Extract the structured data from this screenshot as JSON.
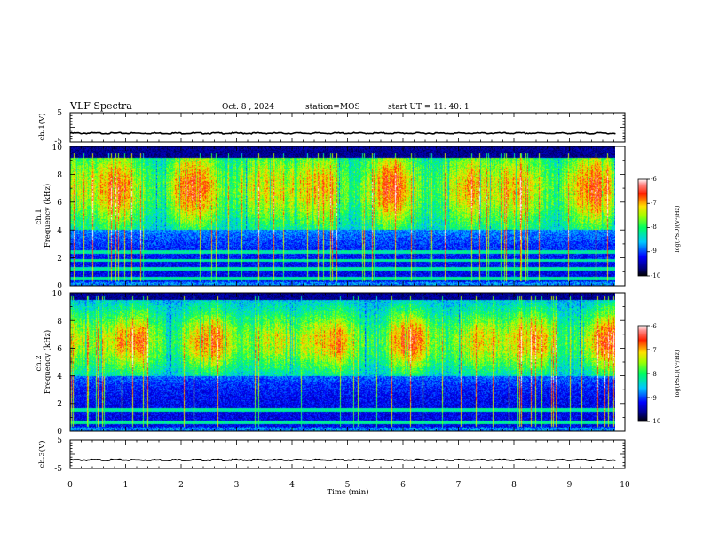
{
  "header": {
    "title": "VLF Spectra",
    "date": "Oct. 8 , 2024",
    "station": "station=MOS",
    "start": "start UT = 11: 40: 1"
  },
  "chart_data": [
    {
      "type": "line",
      "name": "ch1-voltage",
      "ylabel": "ch.1(V)",
      "ylim": [
        -5,
        5
      ],
      "yticks": [
        "5",
        "-5"
      ],
      "level": -2,
      "xlim": [
        0,
        10
      ]
    },
    {
      "type": "heatmap",
      "name": "ch1-spectrogram",
      "ylabel": "ch.1\nFrequency (kHz)",
      "ylim": [
        0,
        10
      ],
      "yticks": [
        "0",
        "2",
        "4",
        "6",
        "8",
        "10"
      ],
      "xlim": [
        0,
        9.83
      ],
      "colorbar": {
        "label": "log(PSD)(V²/Hz)",
        "range": [
          -10,
          -6
        ],
        "ticks": [
          "-6",
          "-7",
          "-8",
          "-9",
          "-10"
        ]
      },
      "features": {
        "intense_band_khz": [
          5,
          9
        ],
        "cutoff_khz": 9.2,
        "low_emission_lines_khz": [
          0.5,
          1.2,
          1.8,
          2.4
        ]
      }
    },
    {
      "type": "heatmap",
      "name": "ch2-spectrogram",
      "ylabel": "ch.2\nFrequency (kHz)",
      "ylim": [
        0,
        10
      ],
      "yticks": [
        "0",
        "2",
        "4",
        "6",
        "8",
        "10"
      ],
      "xlim": [
        0,
        9.83
      ],
      "colorbar": {
        "label": "log(PSD)(V²/Hz)",
        "range": [
          -10,
          -6
        ],
        "ticks": [
          "-6",
          "-7",
          "-8",
          "-9",
          "-10"
        ]
      },
      "features": {
        "intense_band_khz": [
          5,
          8
        ],
        "cutoff_khz": 9.5,
        "low_emission_lines_khz": [
          0.6,
          1.5
        ]
      }
    },
    {
      "type": "line",
      "name": "ch3-voltage",
      "ylabel": "ch.3(V)",
      "ylim": [
        -5,
        5
      ],
      "yticks": [
        "5",
        "-5"
      ],
      "level": -2,
      "xlim": [
        0,
        10
      ]
    }
  ],
  "xaxis": {
    "label": "Time (min)",
    "ticks": [
      "0",
      "1",
      "2",
      "3",
      "4",
      "5",
      "6",
      "7",
      "8",
      "9",
      "10"
    ],
    "range": [
      0,
      10
    ]
  }
}
